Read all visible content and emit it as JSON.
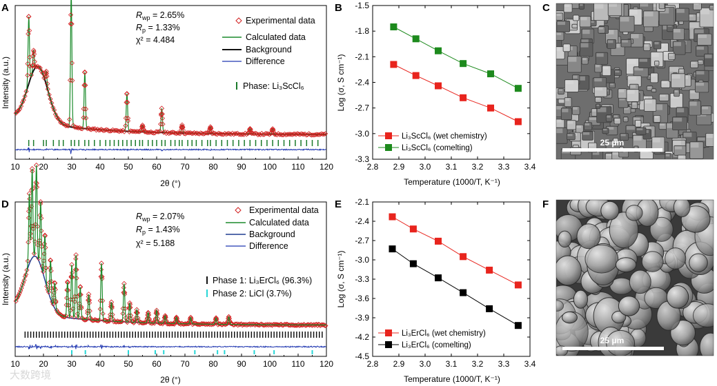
{
  "panels": {
    "A": {
      "letter": "A"
    },
    "B": {
      "letter": "B"
    },
    "C": {
      "letter": "C"
    },
    "D": {
      "letter": "D"
    },
    "E": {
      "letter": "E"
    },
    "F": {
      "letter": "F"
    }
  },
  "watermark": "大数跨境",
  "colors": {
    "experimental": "#d11f1f",
    "calculated": "#1a8a2a",
    "background": "#111111",
    "background_d": "#1f3c8f",
    "difference": "#1f36b0",
    "tick_green": "#1a7a2a",
    "tick_black": "#111111",
    "tick_cyan": "#27d6d6",
    "red_series": "#e8241d",
    "green_series": "#1d8a1d",
    "black_series": "#000000"
  },
  "chart_data": [
    {
      "id": "A",
      "type": "line",
      "xlabel": "2θ (°)",
      "ylabel": "Intensity (a.u.)",
      "xlim": [
        10,
        120
      ],
      "xticks": [
        "10",
        "20",
        "30",
        "40",
        "50",
        "60",
        "70",
        "80",
        "90",
        "100",
        "110",
        "120"
      ],
      "stats": {
        "rwp_sym": "R",
        "rwp_sub": "wp",
        "rwp_val": " = 2.65%",
        "rp_sym": "R",
        "rp_sub": "p",
        "rp_val": " = 1.33%",
        "chi": "χ² = 4.484"
      },
      "legend": [
        "Experimental data",
        "Calculated data",
        "Background",
        "Difference"
      ],
      "phase_label": "Phase: Li₃ScCl₆",
      "baseline_intensity": 0.05,
      "hump": {
        "center": 18,
        "height": 0.42,
        "width": 5
      },
      "peaks": [
        {
          "x": 14.8,
          "h": 0.5
        },
        {
          "x": 16.5,
          "h": 0.15
        },
        {
          "x": 21.0,
          "h": 0.1
        },
        {
          "x": 29.8,
          "h": 1.0
        },
        {
          "x": 34.6,
          "h": 0.42
        },
        {
          "x": 49.5,
          "h": 0.28
        },
        {
          "x": 55.0,
          "h": 0.05
        },
        {
          "x": 61.8,
          "h": 0.18
        },
        {
          "x": 69.0,
          "h": 0.06
        },
        {
          "x": 79.0,
          "h": 0.05
        },
        {
          "x": 93.0,
          "h": 0.04
        },
        {
          "x": 101.0,
          "h": 0.04
        }
      ],
      "phase_ticks": [
        14.8,
        16.5,
        20.0,
        21.0,
        23.5,
        25.5,
        27.0,
        29.8,
        31.0,
        32.5,
        34.6,
        36.0,
        38.0,
        40.0,
        42.0,
        43.5,
        45.0,
        46.5,
        48.0,
        49.5,
        51.0,
        52.5,
        54.0,
        55.0,
        57.0,
        58.5,
        60.0,
        61.8,
        63.0,
        65.0,
        66.5,
        68.0,
        69.0,
        71.0,
        72.5,
        74.0,
        76.0,
        78.0,
        79.0,
        81.0,
        83.0,
        85.0,
        87.0,
        89.0,
        91.0,
        93.0,
        95.0,
        97.0,
        99.0,
        101.0,
        103.0,
        105.0,
        107.0,
        109.0,
        111.0,
        113.0,
        115.0,
        117.0
      ]
    },
    {
      "id": "B",
      "type": "line",
      "xlabel": "Temperature (1000/T, K⁻¹)",
      "ylabel": "Log (σ, S cm⁻¹)",
      "xlim": [
        2.8,
        3.4
      ],
      "ylim": [
        -3.3,
        -1.5
      ],
      "xticks": [
        "2.8",
        "2.9",
        "3.0",
        "3.1",
        "3.2",
        "3.3",
        "3.4"
      ],
      "yticks": [
        "-1.5",
        "-1.8",
        "-2.1",
        "-2.4",
        "-2.7",
        "-3.0",
        "-3.3"
      ],
      "series": [
        {
          "name": "Li₃ScCl₆  (wet chemistry)",
          "color": "#e8241d",
          "x": [
            2.88,
            2.965,
            3.05,
            3.145,
            3.25,
            3.355
          ],
          "y": [
            -2.19,
            -2.32,
            -2.44,
            -2.58,
            -2.7,
            -2.86
          ]
        },
        {
          "name": "Li₃ScCl₆  (comelting)",
          "color": "#1d8a1d",
          "x": [
            2.88,
            2.965,
            3.05,
            3.145,
            3.25,
            3.355
          ],
          "y": [
            -1.75,
            -1.89,
            -2.03,
            -2.18,
            -2.3,
            -2.47
          ]
        }
      ]
    },
    {
      "id": "D",
      "type": "line",
      "xlabel": "2θ (°)",
      "ylabel": "Intensity (a.u.)",
      "xlim": [
        10,
        120
      ],
      "xticks": [
        "10",
        "20",
        "30",
        "40",
        "50",
        "60",
        "70",
        "80",
        "90",
        "100",
        "110",
        "120"
      ],
      "stats": {
        "rwp_sym": "R",
        "rwp_sub": "wp",
        "rwp_val": " = 2.07%",
        "rp_sym": "R",
        "rp_sub": "p",
        "rp_val": " = 1.43%",
        "chi": "χ² = 5.188"
      },
      "legend": [
        "Experimental data",
        "Calculated data",
        "Background",
        "Difference"
      ],
      "phase1_label": "Phase 1: Li₃ErCl₆ (96.3%)",
      "phase2_label": "Phase 2: LiCl (3.7%)",
      "baseline_intensity": 0.05,
      "hump": {
        "center": 17,
        "height": 0.45,
        "width": 5
      },
      "peaks": [
        {
          "x": 15.0,
          "h": 0.55
        },
        {
          "x": 16.0,
          "h": 0.7
        },
        {
          "x": 17.5,
          "h": 0.72
        },
        {
          "x": 19.0,
          "h": 0.5
        },
        {
          "x": 20.5,
          "h": 0.35
        },
        {
          "x": 22.5,
          "h": 0.3
        },
        {
          "x": 24.0,
          "h": 0.2
        },
        {
          "x": 28.5,
          "h": 0.28
        },
        {
          "x": 30.0,
          "h": 0.42
        },
        {
          "x": 31.5,
          "h": 0.5
        },
        {
          "x": 33.0,
          "h": 0.25
        },
        {
          "x": 36.0,
          "h": 0.2
        },
        {
          "x": 40.5,
          "h": 0.45
        },
        {
          "x": 44.0,
          "h": 0.15
        },
        {
          "x": 48.5,
          "h": 0.3
        },
        {
          "x": 50.5,
          "h": 0.15
        },
        {
          "x": 53.0,
          "h": 0.1
        },
        {
          "x": 57.0,
          "h": 0.08
        },
        {
          "x": 60.0,
          "h": 0.1
        },
        {
          "x": 63.0,
          "h": 0.06
        },
        {
          "x": 67.0,
          "h": 0.05
        },
        {
          "x": 72.0,
          "h": 0.05
        },
        {
          "x": 81.0,
          "h": 0.05
        },
        {
          "x": 85.5,
          "h": 0.06
        }
      ],
      "phase1_ticks": [
        13.5,
        14.5,
        15.5,
        16.5,
        17.5,
        18.5,
        19.5,
        20.5,
        21.5,
        22.5,
        23.5,
        24.5,
        25.5,
        26.5,
        27.5,
        28.5,
        29.5,
        30.5,
        31.5,
        32.5,
        33.5,
        34.5,
        35.5,
        36.5,
        37.5,
        38.5,
        39.5,
        40.5,
        41.5,
        42.5,
        43.5,
        44.5,
        45.5,
        46.5,
        47.5,
        48.5,
        49.5,
        50.5,
        51.5,
        52.5,
        53.5,
        54.5,
        55.5,
        56.5,
        57.5,
        58.5,
        59.5,
        60.5,
        61.5,
        62.5,
        63.5,
        64.5,
        65.5,
        66.5,
        67.5,
        68.5,
        69.5,
        70.5,
        71.5,
        72.5,
        73.5,
        74.5,
        75.5,
        76.5,
        77.5,
        78.5,
        79.5,
        80.5,
        81.5,
        82.5,
        83.5,
        84.5,
        85.5,
        86.5,
        87.5,
        88.5,
        89.5,
        90.5,
        91.5,
        92.5,
        93.5,
        94.5,
        95.5,
        96.5,
        97.5,
        98.5,
        99.5,
        100.5,
        101.5,
        102.5,
        103.5,
        104.5,
        105.5,
        106.5,
        107.5,
        108.5,
        109.5,
        110.5,
        111.5,
        112.5,
        113.5,
        114.5,
        115.5,
        116.5,
        117.5,
        118.5
      ],
      "phase2_ticks": [
        30.0,
        34.8,
        50.0,
        59.5,
        62.5,
        73.5,
        81.5,
        84.0,
        94.5,
        101.5,
        115.0
      ]
    },
    {
      "id": "E",
      "type": "line",
      "xlabel": "Temperature (1000/T, K⁻¹)",
      "ylabel": "Log (σ, S cm⁻¹)",
      "xlim": [
        2.8,
        3.4
      ],
      "ylim": [
        -4.5,
        -2.1
      ],
      "xticks": [
        "2.8",
        "2.9",
        "3.0",
        "3.1",
        "3.2",
        "3.3",
        "3.4"
      ],
      "yticks": [
        "-2.1",
        "-2.4",
        "-2.7",
        "-3.0",
        "-3.3",
        "-3.6",
        "-3.9",
        "-4.2",
        "-4.5"
      ],
      "series": [
        {
          "name": "Li₃ErCl₆ (wet chemistry)",
          "color": "#e8241d",
          "x": [
            2.875,
            2.955,
            3.05,
            3.145,
            3.245,
            3.355
          ],
          "y": [
            -2.33,
            -2.52,
            -2.71,
            -2.95,
            -3.16,
            -3.39
          ]
        },
        {
          "name": "Li₃ErCl₆ (comelting)",
          "color": "#000000",
          "x": [
            2.875,
            2.955,
            3.05,
            3.145,
            3.245,
            3.355
          ],
          "y": [
            -2.83,
            -3.06,
            -3.28,
            -3.51,
            -3.76,
            -4.02
          ]
        }
      ]
    }
  ],
  "sem": {
    "C": {
      "scale_label": "25 μm"
    },
    "F": {
      "scale_label": "25 μm"
    }
  }
}
